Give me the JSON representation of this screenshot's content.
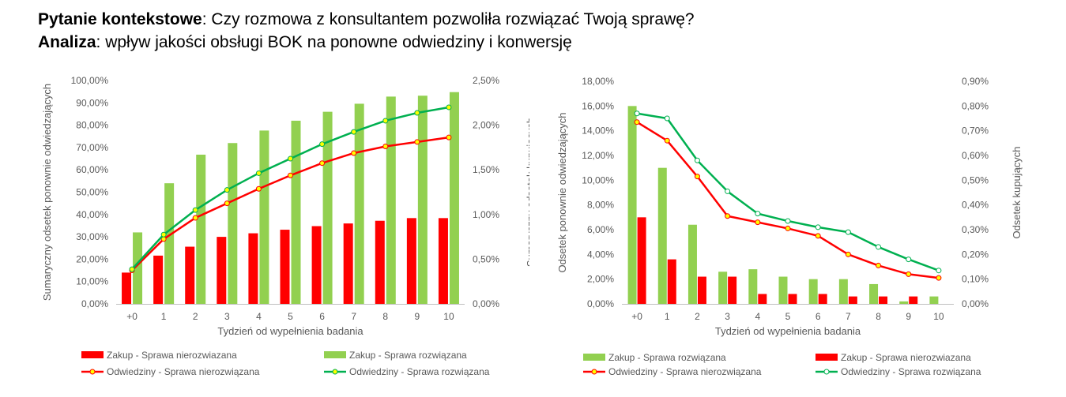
{
  "header": {
    "line1_bold": "Pytanie kontekstowe",
    "line1_text": ": Czy rozmowa z konsultantem pozwoliła rozwiązać Twoją sprawę?",
    "line2_bold": "Analiza",
    "line2_text": ": wpływ jakości obsługi BOK na ponowne odwiedziny i konwersję"
  },
  "colors": {
    "red": "#ff0000",
    "green_bar": "#92d050",
    "green_line": "#00b050",
    "marker_fill": "#ffff00",
    "axis": "#bfbfbf",
    "text": "#595959"
  },
  "chart_data": [
    {
      "type": "bar+line",
      "categories": [
        "+0",
        "1",
        "2",
        "3",
        "4",
        "5",
        "6",
        "7",
        "8",
        "9",
        "10"
      ],
      "xlabel": "Tydzień od wypełnienia badania",
      "ylabel_left": "Sumaryczny odsetek ponownie odwiedzających",
      "ylabel_right": "Sumaryczny odsetek kupujących",
      "yticks_left": [
        "0,00%",
        "10,00%",
        "20,00%",
        "30,00%",
        "40,00%",
        "50,00%",
        "60,00%",
        "70,00%",
        "80,00%",
        "90,00%",
        "100,00%"
      ],
      "yticks_right": [
        "0,00%",
        "0,50%",
        "1,00%",
        "1,50%",
        "2,00%",
        "2,50%"
      ],
      "ylim_left": [
        0,
        100
      ],
      "ylim_right": [
        0,
        2.5
      ],
      "bars": [
        {
          "name": "Zakup - Sprawa nierozwiazana",
          "axis": "right",
          "color": "#ff0000",
          "values": [
            0.35,
            0.54,
            0.64,
            0.75,
            0.79,
            0.83,
            0.87,
            0.9,
            0.93,
            0.96,
            0.96
          ]
        },
        {
          "name": "Zakup - Sprawa rozwiązana",
          "axis": "right",
          "color": "#92d050",
          "values": [
            0.8,
            1.35,
            1.67,
            1.8,
            1.94,
            2.05,
            2.15,
            2.24,
            2.32,
            2.33,
            2.37
          ]
        }
      ],
      "lines": [
        {
          "name": "Odwiedziny - Sprawa nierozwiązana",
          "axis": "left",
          "color": "#ff0000",
          "marker_fill": "#ffff00",
          "values": [
            15.0,
            29.0,
            38.5,
            45.0,
            51.5,
            57.5,
            63.0,
            67.5,
            70.5,
            72.5,
            74.5
          ]
        },
        {
          "name": "Odwiedziny - Sprawa rozwiązana",
          "axis": "left",
          "color": "#00b050",
          "marker_fill": "#ffff00",
          "values": [
            15.5,
            31.0,
            42.0,
            51.0,
            58.5,
            65.0,
            71.5,
            77.0,
            82.0,
            85.5,
            88.0
          ]
        }
      ],
      "legend": {
        "placement": "bottom",
        "items": [
          "Zakup - Sprawa nierozwiazana",
          "Zakup - Sprawa rozwiązana",
          "Odwiedziny - Sprawa nierozwiązana",
          "Odwiedziny - Sprawa rozwiązana"
        ]
      }
    },
    {
      "type": "bar+line",
      "categories": [
        "+0",
        "1",
        "2",
        "3",
        "4",
        "5",
        "6",
        "7",
        "8",
        "9",
        "10"
      ],
      "xlabel": "Tydzień od wypełnienia badania",
      "ylabel_left": "Odsetek ponownie odwiedzających",
      "ylabel_right": "Odsetek kupujących",
      "yticks_left": [
        "0,00%",
        "2,00%",
        "4,00%",
        "6,00%",
        "8,00%",
        "10,00%",
        "12,00%",
        "14,00%",
        "16,00%",
        "18,00%"
      ],
      "yticks_right": [
        "0,00%",
        "0,10%",
        "0,20%",
        "0,30%",
        "0,40%",
        "0,50%",
        "0,60%",
        "0,70%",
        "0,80%",
        "0,90%"
      ],
      "ylim_left": [
        0,
        18
      ],
      "ylim_right": [
        0,
        0.9
      ],
      "bars": [
        {
          "name": "Zakup - Sprawa rozwiązana",
          "axis": "right",
          "color": "#92d050",
          "values": [
            0.8,
            0.55,
            0.32,
            0.13,
            0.14,
            0.11,
            0.1,
            0.1,
            0.08,
            0.01,
            0.03
          ]
        },
        {
          "name": "Zakup - Sprawa nierozwiazana",
          "axis": "right",
          "color": "#ff0000",
          "values": [
            0.35,
            0.18,
            0.11,
            0.11,
            0.04,
            0.04,
            0.04,
            0.03,
            0.03,
            0.03,
            0.0
          ]
        }
      ],
      "lines": [
        {
          "name": "Odwiedziny - Sprawa nierozwiązana",
          "axis": "left",
          "color": "#ff0000",
          "marker_fill": "#ffff00",
          "values": [
            14.7,
            13.2,
            10.3,
            7.1,
            6.6,
            6.1,
            5.5,
            4.0,
            3.1,
            2.4,
            2.1
          ]
        },
        {
          "name": "Odwiedziny - Sprawa rozwiązana",
          "axis": "left",
          "color": "#00b050",
          "marker_fill": "#ffffff",
          "values": [
            15.4,
            15.0,
            11.6,
            9.1,
            7.3,
            6.7,
            6.2,
            5.8,
            4.6,
            3.6,
            2.7
          ]
        }
      ],
      "legend": {
        "placement": "bottom",
        "items": [
          "Zakup - Sprawa rozwiązana",
          "Zakup - Sprawa nierozwiazana",
          "Odwiedziny - Sprawa nierozwiązana",
          "Odwiedziny - Sprawa rozwiązana"
        ]
      }
    }
  ]
}
